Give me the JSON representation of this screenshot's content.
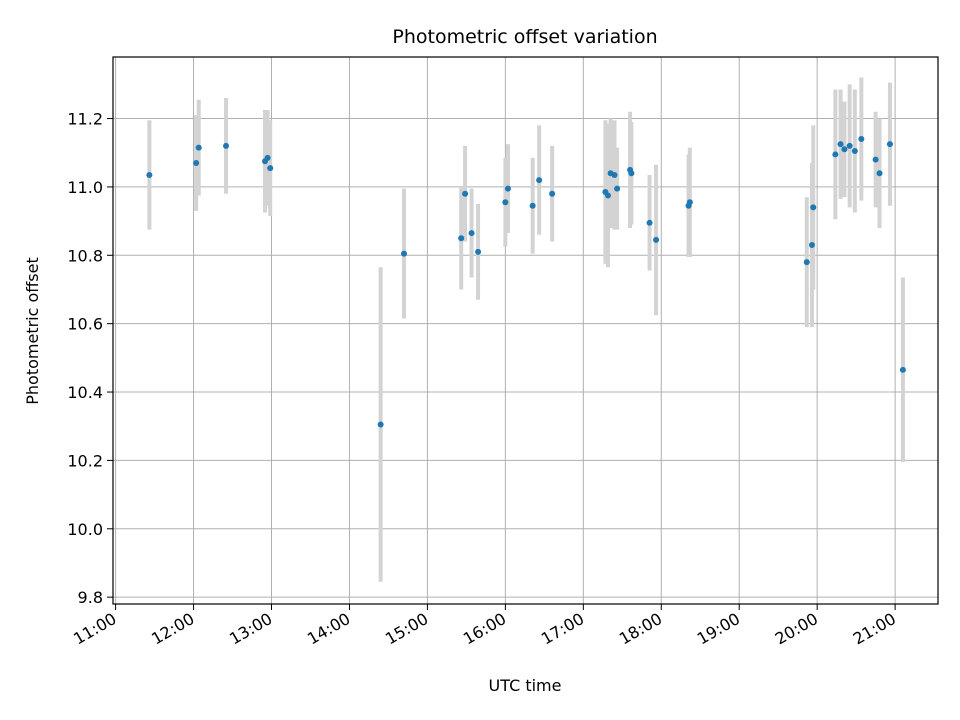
{
  "chart_data": {
    "type": "scatter",
    "title": "Photometric offset variation",
    "xlabel": "UTC time",
    "ylabel": "Photometric offset",
    "x_ticks": [
      "11:00",
      "12:00",
      "13:00",
      "14:00",
      "15:00",
      "16:00",
      "17:00",
      "18:00",
      "19:00",
      "20:00",
      "21:00"
    ],
    "y_ticks": [
      "9.8",
      "10.0",
      "10.2",
      "10.4",
      "10.6",
      "10.8",
      "11.0",
      "11.2"
    ],
    "xlim": [
      "10:58",
      "21:33"
    ],
    "ylim": [
      9.78,
      11.38
    ],
    "grid": true,
    "colors": {
      "point": "#1f77b4",
      "errorbar": "#d3d3d3",
      "grid": "#b0b0b0"
    },
    "series": [
      {
        "x": [
          "11:26",
          "12:02",
          "12:04",
          "12:25",
          "12:55",
          "12:57",
          "12:59",
          "14:24",
          "14:42",
          "15:26",
          "15:29",
          "15:34",
          "15:39",
          "16:00",
          "16:02",
          "16:21",
          "16:26",
          "16:36",
          "17:17",
          "17:19",
          "17:21",
          "17:24",
          "17:26",
          "17:36",
          "17:37",
          "17:51",
          "17:56",
          "18:21",
          "18:22",
          "19:52",
          "19:56",
          "19:57",
          "20:14",
          "20:18",
          "20:21",
          "20:25",
          "20:29",
          "20:34",
          "20:45",
          "20:48",
          "20:56",
          "21:06"
        ],
        "y": [
          11.035,
          11.07,
          11.115,
          11.12,
          11.075,
          11.085,
          11.055,
          10.305,
          10.805,
          10.85,
          10.98,
          10.865,
          10.81,
          10.955,
          10.995,
          10.945,
          11.02,
          10.98,
          10.985,
          10.975,
          11.04,
          11.035,
          10.995,
          11.05,
          11.04,
          10.895,
          10.845,
          10.945,
          10.955,
          10.78,
          10.83,
          10.94,
          11.095,
          11.125,
          11.11,
          11.12,
          11.105,
          11.14,
          11.08,
          11.04,
          11.125,
          10.465
        ],
        "yerr": [
          0.16,
          0.14,
          0.14,
          0.14,
          0.15,
          0.14,
          0.14,
          0.46,
          0.19,
          0.15,
          0.14,
          0.13,
          0.14,
          0.13,
          0.13,
          0.14,
          0.16,
          0.14,
          0.21,
          0.21,
          0.16,
          0.16,
          0.12,
          0.17,
          0.15,
          0.14,
          0.22,
          0.15,
          0.16,
          0.19,
          0.24,
          0.24,
          0.19,
          0.16,
          0.14,
          0.18,
          0.18,
          0.18,
          0.14,
          0.16,
          0.18,
          0.27
        ]
      }
    ]
  }
}
